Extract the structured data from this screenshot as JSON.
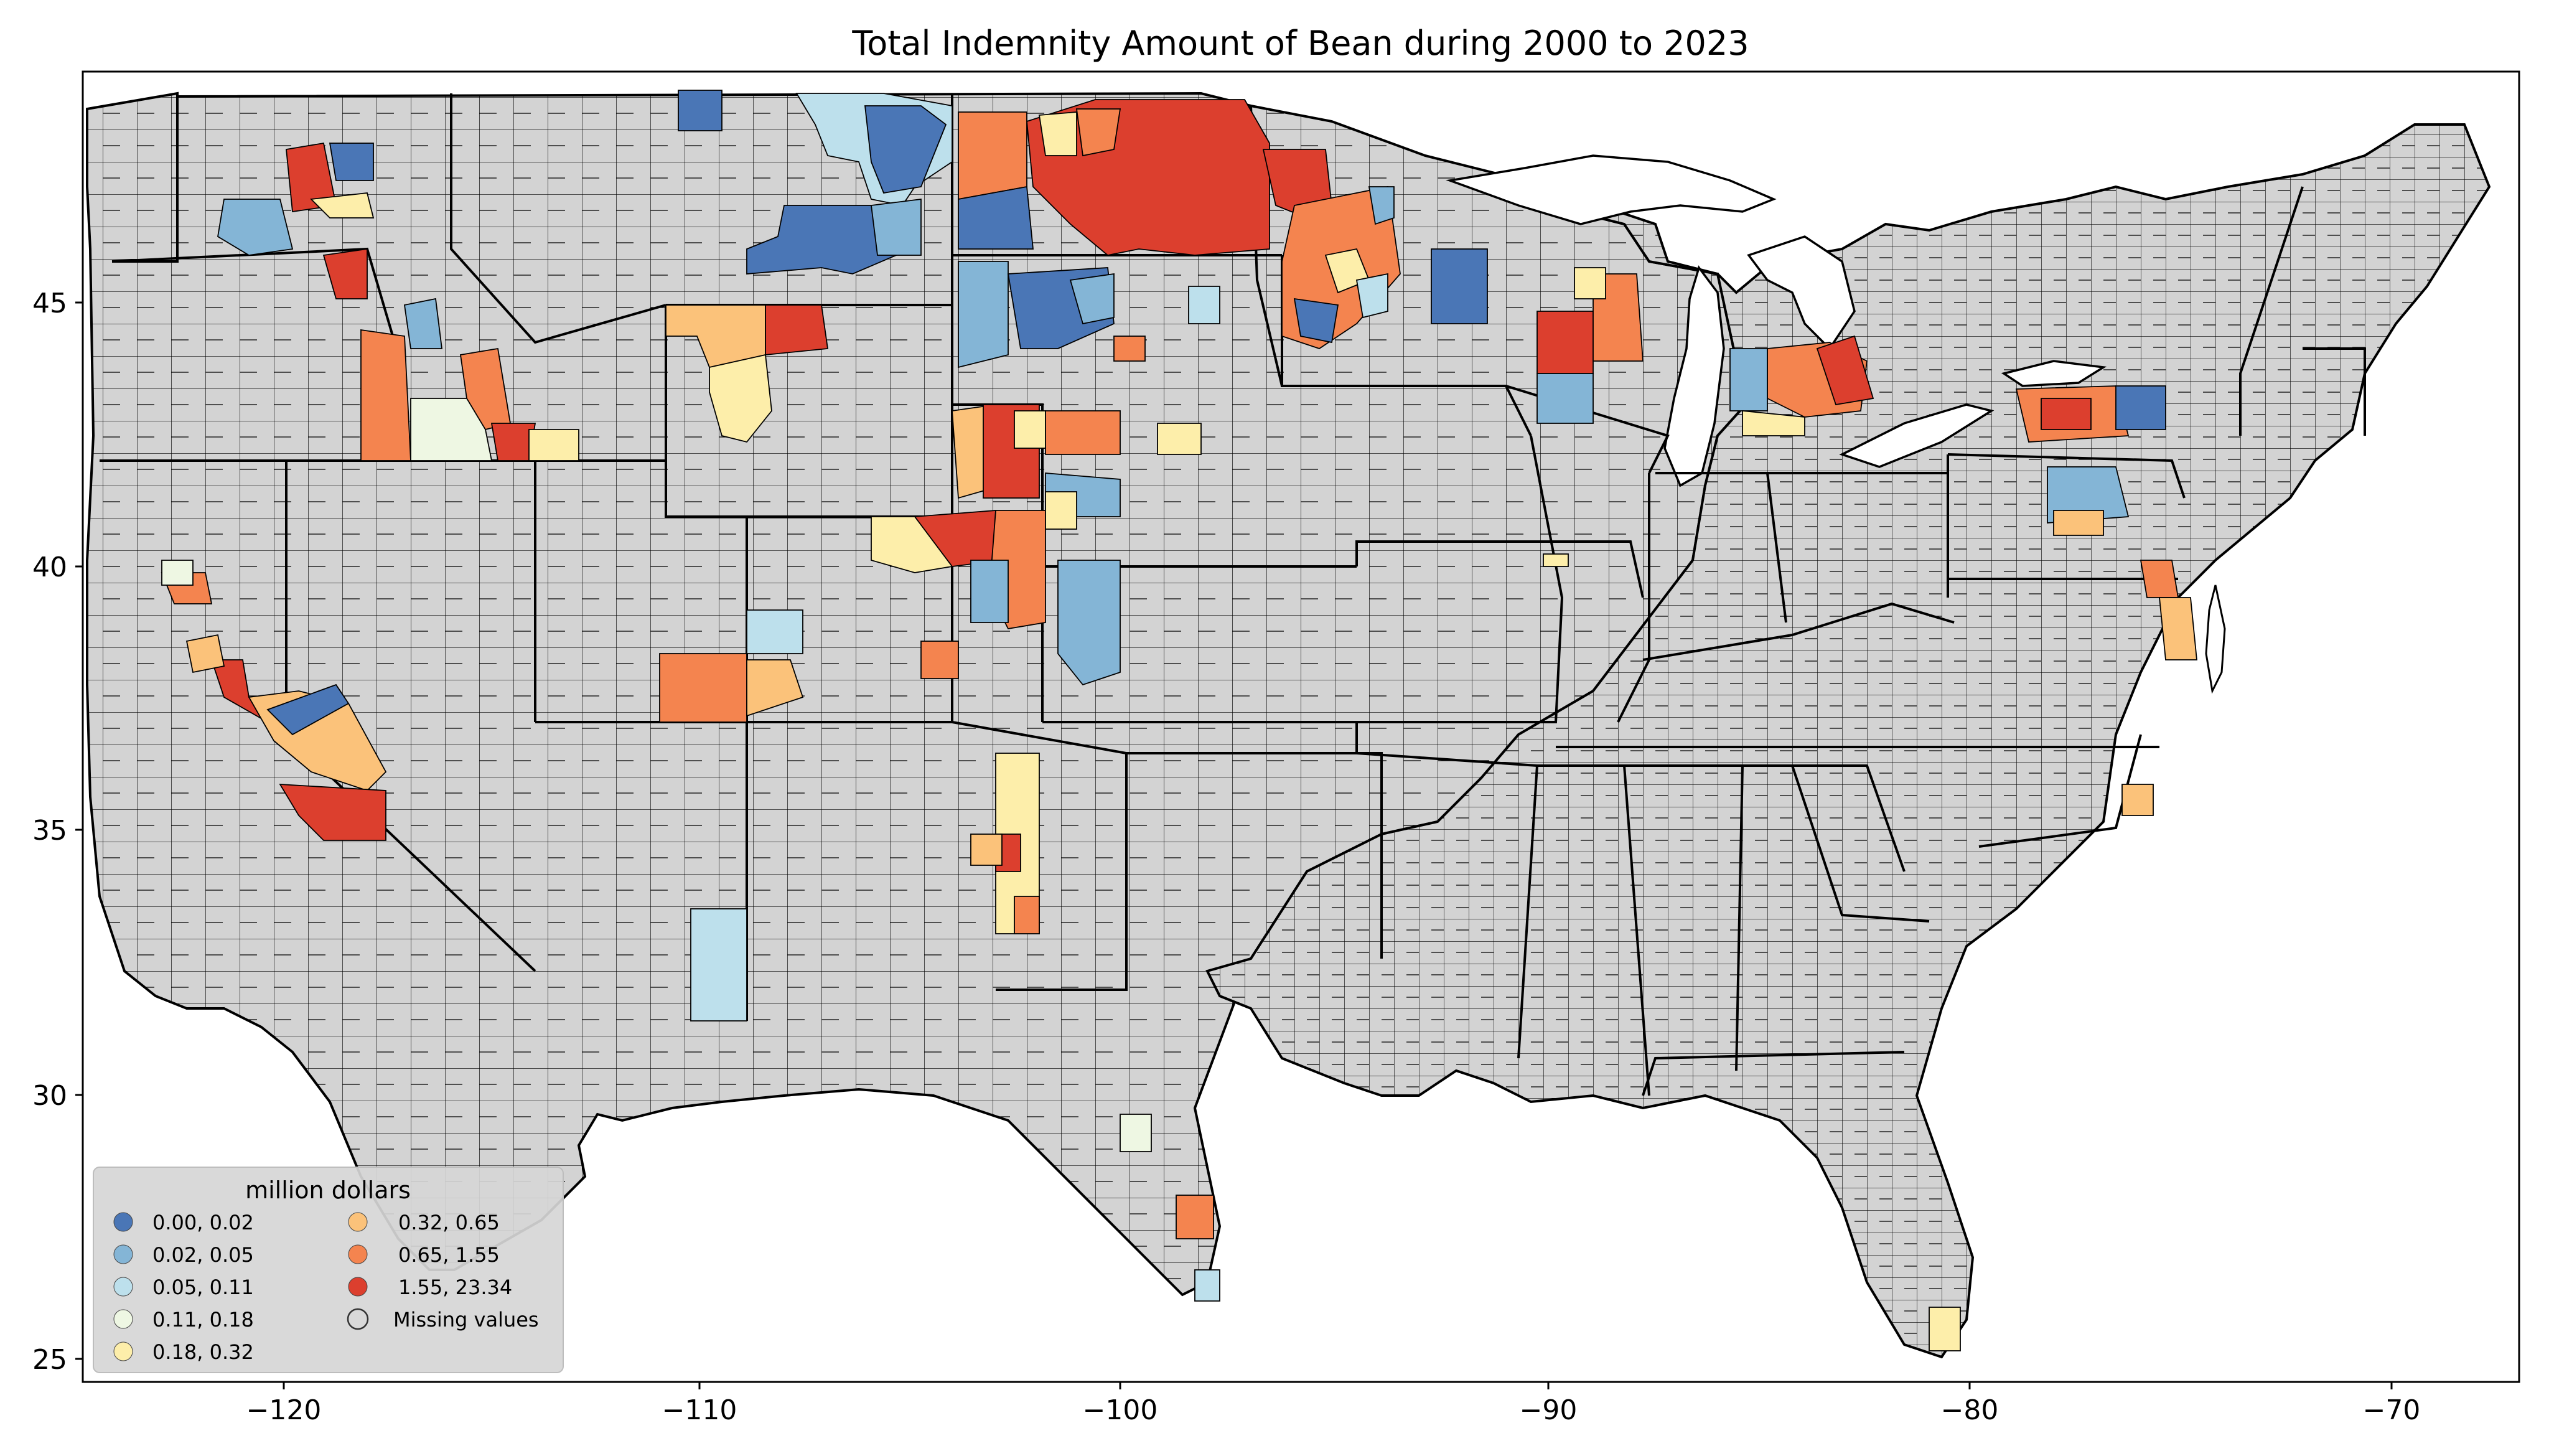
{
  "figure": {
    "title": "Total Indemnity Amount of Bean during 2000 to 2023"
  },
  "map_data": {
    "type": "choropleth",
    "region": "Contiguous United States, county level",
    "missing_color": "#d3d3d3",
    "x_ticks": [
      "−120",
      "−110",
      "−100",
      "−90",
      "−80",
      "−70"
    ],
    "y_ticks": [
      "45",
      "40",
      "35",
      "30",
      "25"
    ],
    "x_tick_values": [
      -120,
      -110,
      -100,
      -90,
      -80,
      -70
    ],
    "y_tick_values": [
      45,
      40,
      35,
      30,
      25
    ],
    "lon_range": [
      -125,
      -66.5
    ],
    "lat_range": [
      24.5,
      49.5
    ],
    "legend": {
      "title": "million dollars",
      "placement": "lower-left",
      "classes": [
        {
          "label": "0.00,  0.02",
          "color": "#4a76b6"
        },
        {
          "label": "0.02,  0.05",
          "color": "#84b5d6"
        },
        {
          "label": "0.05,  0.11",
          "color": "#bde0ec"
        },
        {
          "label": "0.11,  0.18",
          "color": "#eef7e3"
        },
        {
          "label": "0.18,  0.32",
          "color": "#fdeeaa"
        },
        {
          "label": "0.32,  0.65",
          "color": "#fbc27a"
        },
        {
          "label": "0.65,  1.55",
          "color": "#f4844f"
        },
        {
          "label": "1.55, 23.34",
          "color": "#dc3f2e"
        },
        {
          "label": "Missing values",
          "color": "#d3d3d3"
        }
      ]
    },
    "highlighted_areas": [
      {
        "area": "Eastern North Dakota / Red River Valley",
        "class": "1.55, 23.34"
      },
      {
        "area": "Northwestern Minnesota",
        "class": "0.65,  1.55"
      },
      {
        "area": "Central Michigan (Thumb)",
        "class": "1.55, 23.34"
      },
      {
        "area": "Western Nebraska",
        "class": "1.55, 23.34"
      },
      {
        "area": "Northeastern Colorado",
        "class": "0.65,  1.55"
      },
      {
        "area": "Northern Wyoming",
        "class": "0.32,  0.65"
      },
      {
        "area": "Southern Idaho",
        "class": "0.65,  1.55"
      },
      {
        "area": "Central California",
        "class": "1.55, 23.34"
      },
      {
        "area": "Western New York",
        "class": "0.65,  1.55"
      },
      {
        "area": "Central Montana",
        "class": "0.00,  0.02"
      }
    ]
  }
}
